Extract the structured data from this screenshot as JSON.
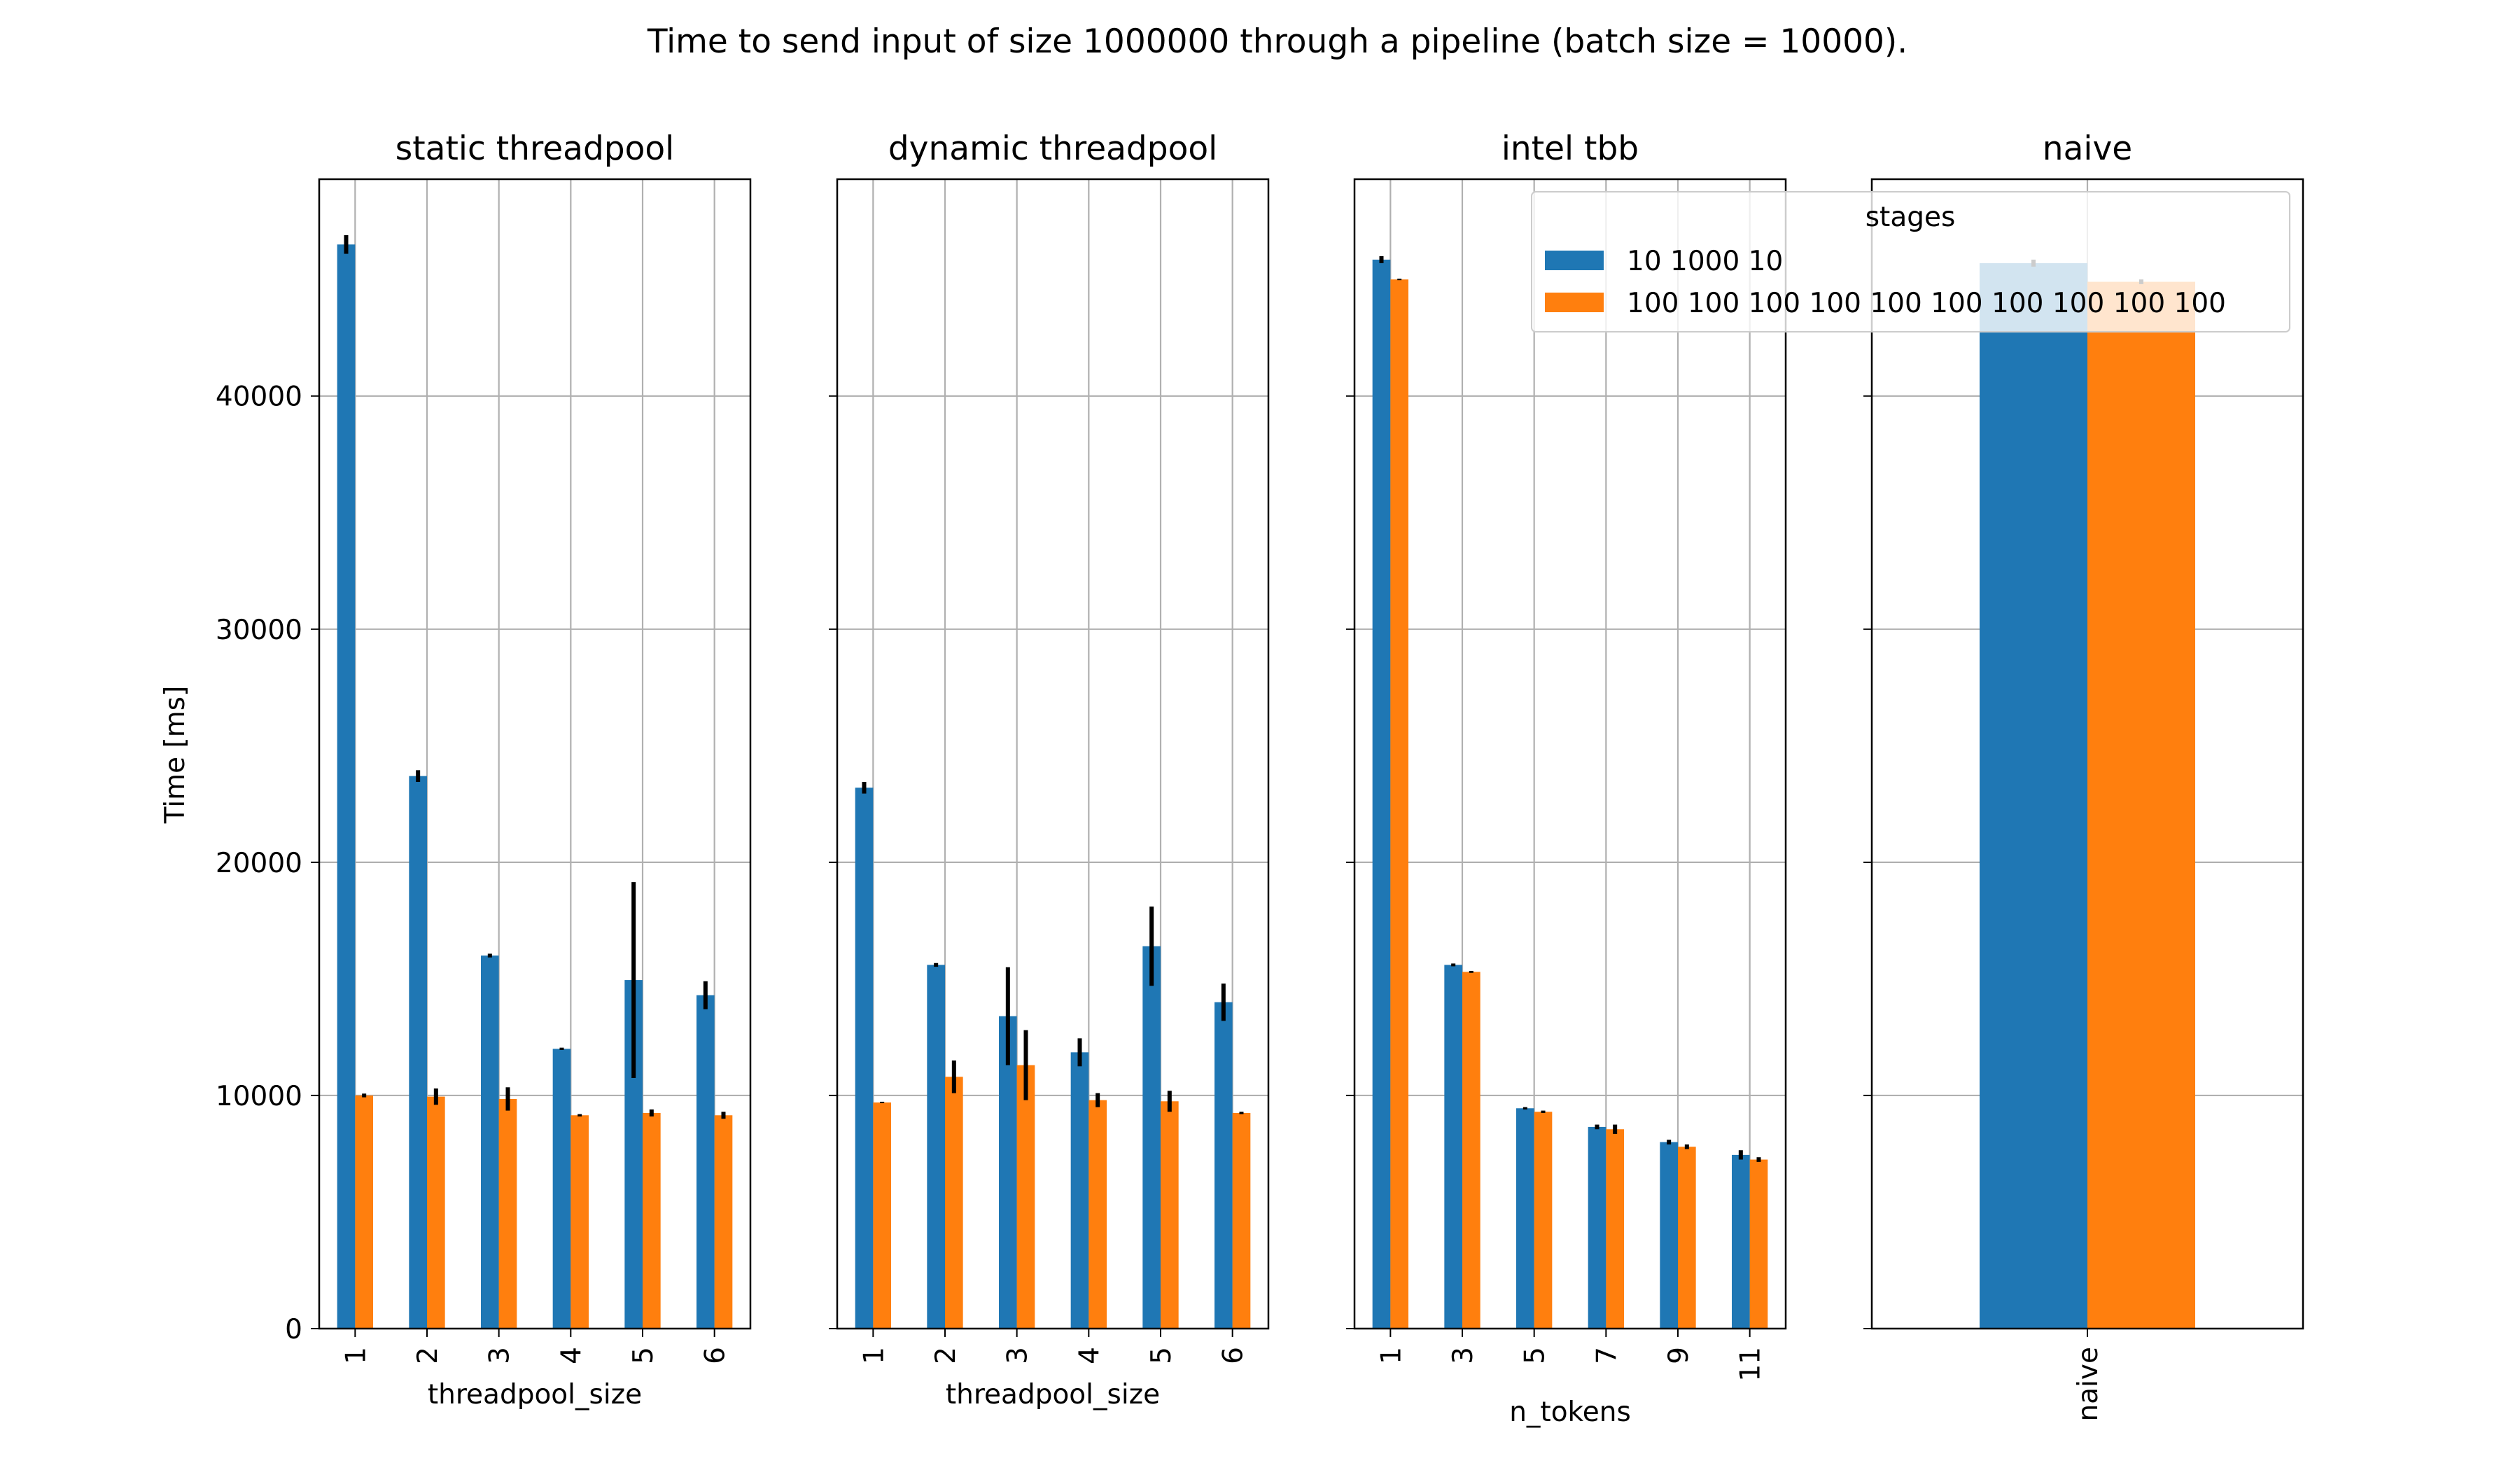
{
  "chart_data": {
    "type": "bar",
    "title": "Time to send input of size 1000000 through a pipeline (batch size = 10000).",
    "ylabel": "Time [ms]",
    "ylim": [
      0,
      49300
    ],
    "yticks": [
      0,
      10000,
      20000,
      30000,
      40000
    ],
    "grid": true,
    "legend": {
      "title": "stages",
      "placement": "top-right",
      "entries": [
        {
          "label": "10 1000 10",
          "color": "#1f77b4"
        },
        {
          "label": "100 100 100 100 100 100 100 100 100 100",
          "color": "#ff7f0e"
        }
      ]
    },
    "panels": [
      {
        "title": "static threadpool",
        "xlabel": "threadpool_size",
        "categories": [
          "1",
          "2",
          "3",
          "4",
          "5",
          "6"
        ],
        "series": [
          {
            "name": "10 1000 10",
            "values": [
              46500,
              23700,
              16000,
              12000,
              14950,
              14300
            ],
            "errors": [
              400,
              250,
              80,
              50,
              4200,
              600
            ]
          },
          {
            "name": "100 100 100 100 100 100 100 100 100 100",
            "values": [
              10000,
              9950,
              9850,
              9150,
              9250,
              9150
            ],
            "errors": [
              80,
              350,
              500,
              50,
              150,
              150
            ]
          }
        ]
      },
      {
        "title": "dynamic threadpool",
        "xlabel": "threadpool_size",
        "categories": [
          "1",
          "2",
          "3",
          "4",
          "5",
          "6"
        ],
        "series": [
          {
            "name": "10 1000 10",
            "values": [
              23200,
              15600,
              13400,
              11850,
              16400,
              14000
            ],
            "errors": [
              250,
              80,
              2100,
              600,
              1700,
              800
            ]
          },
          {
            "name": "100 100 100 100 100 100 100 100 100 100",
            "values": [
              9700,
              10800,
              11300,
              9800,
              9750,
              9250
            ],
            "errors": [
              30,
              700,
              1500,
              300,
              450,
              50
            ]
          }
        ]
      },
      {
        "title": "intel tbb",
        "xlabel": "n_tokens",
        "categories": [
          "1",
          "3",
          "5",
          "7",
          "9",
          "11"
        ],
        "series": [
          {
            "name": "10 1000 10",
            "values": [
              45850,
              15600,
              9450,
              8650,
              8000,
              7450
            ],
            "errors": [
              150,
              60,
              50,
              100,
              100,
              200
            ]
          },
          {
            "name": "100 100 100 100 100 100 100 100 100 100",
            "values": [
              45000,
              15300,
              9300,
              8550,
              7800,
              7250
            ],
            "errors": [
              30,
              40,
              50,
              200,
              100,
              100
            ]
          }
        ]
      },
      {
        "title": "naive",
        "xlabel": "",
        "categories": [
          "naive"
        ],
        "series": [
          {
            "name": "10 1000 10",
            "values": [
              45700
            ],
            "errors": [
              150
            ]
          },
          {
            "name": "100 100 100 100 100 100 100 100 100 100",
            "values": [
              44900
            ],
            "errors": [
              100
            ]
          }
        ]
      }
    ]
  }
}
